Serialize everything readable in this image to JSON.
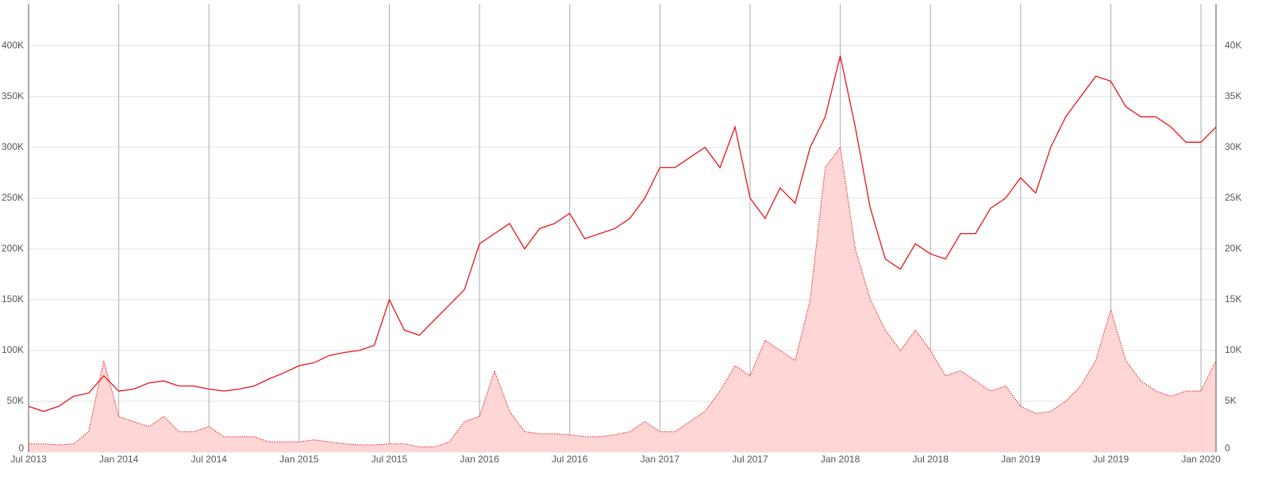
{
  "chart_data": {
    "type": "line-area",
    "x": [
      "2013-07",
      "2013-08",
      "2013-09",
      "2013-10",
      "2013-11",
      "2013-12",
      "2014-01",
      "2014-02",
      "2014-03",
      "2014-04",
      "2014-05",
      "2014-06",
      "2014-07",
      "2014-08",
      "2014-09",
      "2014-10",
      "2014-11",
      "2014-12",
      "2015-01",
      "2015-02",
      "2015-03",
      "2015-04",
      "2015-05",
      "2015-06",
      "2015-07",
      "2015-08",
      "2015-09",
      "2015-10",
      "2015-11",
      "2015-12",
      "2016-01",
      "2016-02",
      "2016-03",
      "2016-04",
      "2016-05",
      "2016-06",
      "2016-07",
      "2016-08",
      "2016-09",
      "2016-10",
      "2016-11",
      "2016-12",
      "2017-01",
      "2017-02",
      "2017-03",
      "2017-04",
      "2017-05",
      "2017-06",
      "2017-07",
      "2017-08",
      "2017-09",
      "2017-10",
      "2017-11",
      "2017-12",
      "2018-01",
      "2018-02",
      "2018-03",
      "2018-04",
      "2018-05",
      "2018-06",
      "2018-07",
      "2018-08",
      "2018-09",
      "2018-10",
      "2018-11",
      "2018-12",
      "2019-01",
      "2019-02",
      "2019-03",
      "2019-04",
      "2019-05",
      "2019-06",
      "2019-07",
      "2019-08",
      "2019-09",
      "2019-10",
      "2019-11",
      "2019-12",
      "2020-01",
      "2020-02"
    ],
    "series": [
      {
        "kind": "line",
        "color": "#e8141a",
        "values": [
          45000,
          40000,
          45000,
          55000,
          58000,
          75000,
          60000,
          62000,
          68000,
          70000,
          65000,
          65000,
          62000,
          60000,
          62000,
          65000,
          72000,
          78000,
          85000,
          88000,
          95000,
          98000,
          100000,
          105000,
          150000,
          120000,
          115000,
          130000,
          145000,
          160000,
          205000,
          215000,
          225000,
          200000,
          220000,
          225000,
          235000,
          210000,
          215000,
          220000,
          230000,
          250000,
          280000,
          280000,
          290000,
          300000,
          280000,
          320000,
          250000,
          230000,
          260000,
          245000,
          300000,
          330000,
          390000,
          320000,
          240000,
          190000,
          180000,
          205000,
          195000,
          190000,
          215000,
          215000,
          240000,
          250000,
          270000,
          255000,
          300000,
          330000,
          350000,
          370000,
          365000,
          340000,
          330000,
          330000,
          320000,
          305000,
          305000,
          320000
        ]
      },
      {
        "kind": "area",
        "axis": "y2",
        "color": "#e8141a",
        "fill": "#ffd6d6",
        "values": [
          800,
          800,
          700,
          800,
          2000,
          9000,
          3500,
          3000,
          2500,
          3500,
          2000,
          2000,
          2500,
          1500,
          1500,
          1500,
          1000,
          1000,
          1000,
          1200,
          1000,
          800,
          700,
          700,
          800,
          800,
          500,
          500,
          1000,
          3000,
          3500,
          8000,
          4000,
          2000,
          1800,
          1800,
          1700,
          1500,
          1500,
          1700,
          2000,
          3000,
          2000,
          2000,
          3000,
          4000,
          6000,
          8500,
          7500,
          11000,
          10000,
          9000,
          15000,
          28000,
          30000,
          20000,
          15000,
          12000,
          10000,
          12000,
          10000,
          7500,
          8000,
          7000,
          6000,
          6500,
          4500,
          3800,
          4000,
          5000,
          6500,
          9000,
          14000,
          9000,
          7000,
          6000,
          5500,
          6000,
          6000,
          9000
        ]
      }
    ],
    "xlim": [
      "2013-07",
      "2020-02"
    ],
    "xticks": [
      {
        "value": "2013-07",
        "label": "Jul 2013"
      },
      {
        "value": "2014-01",
        "label": "Jan 2014"
      },
      {
        "value": "2014-07",
        "label": "Jul 2014"
      },
      {
        "value": "2015-01",
        "label": "Jan 2015"
      },
      {
        "value": "2015-07",
        "label": "Jul 2015"
      },
      {
        "value": "2016-01",
        "label": "Jan 2016"
      },
      {
        "value": "2016-07",
        "label": "Jul 2016"
      },
      {
        "value": "2017-01",
        "label": "Jan 2017"
      },
      {
        "value": "2017-07",
        "label": "Jul 2017"
      },
      {
        "value": "2018-01",
        "label": "Jan 2018"
      },
      {
        "value": "2018-07",
        "label": "Jul 2018"
      },
      {
        "value": "2019-01",
        "label": "Jan 2019"
      },
      {
        "value": "2019-07",
        "label": "Jul 2019"
      },
      {
        "value": "2020-01",
        "label": "Jan 2020"
      }
    ],
    "ylim": [
      0,
      445000
    ],
    "yticks": [
      0,
      {
        "value": 50000,
        "label": "50K"
      },
      {
        "value": 100000,
        "label": "100K"
      },
      {
        "value": 150000,
        "label": "150K"
      },
      {
        "value": 200000,
        "label": "200K"
      },
      {
        "value": 250000,
        "label": "250K"
      },
      {
        "value": 300000,
        "label": "300K"
      },
      {
        "value": 350000,
        "label": "350K"
      },
      {
        "value": 400000,
        "label": "400K"
      }
    ],
    "y2lim": [
      0,
      44500
    ],
    "y2ticks": [
      0,
      {
        "value": 5000,
        "label": "5K"
      },
      {
        "value": 10000,
        "label": "10K"
      },
      {
        "value": 15000,
        "label": "15K"
      },
      {
        "value": 20000,
        "label": "20K"
      },
      {
        "value": 25000,
        "label": "25K"
      },
      {
        "value": 30000,
        "label": "30K"
      },
      {
        "value": 35000,
        "label": "35K"
      },
      {
        "value": 40000,
        "label": "40K"
      }
    ],
    "grid": true
  }
}
